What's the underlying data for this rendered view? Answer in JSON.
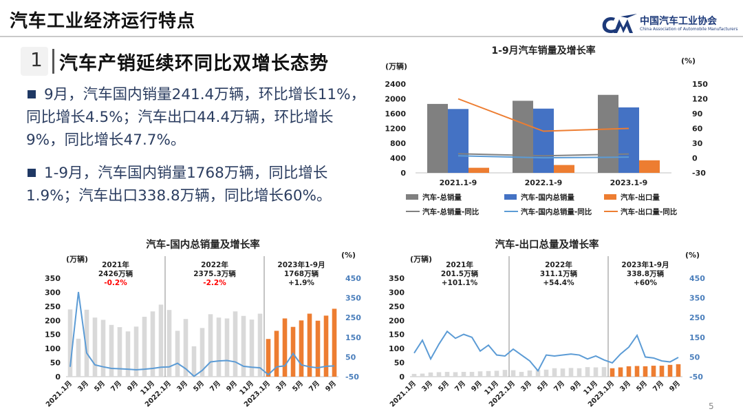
{
  "header": {
    "title": "汽车工业经济运行特点",
    "logo_cn": "中国汽车工业协会",
    "logo_en": "China Association of Automobile Manufacturers"
  },
  "section": {
    "number": "1",
    "title": "汽车产销延续环同比双增长态势"
  },
  "bullets": [
    {
      "line1": "9月，汽车国内销量241.4万辆，环比增长11%，",
      "line2": "同比增长4.5%；汽车出口44.4万辆，环比增长",
      "line3": "9%，同比增长47.7%。"
    },
    {
      "line1": "1-9月，汽车国内销量1768万辆，同比增长",
      "line2": "1.9%；汽车出口338.8万辆，同比增长60%。"
    }
  ],
  "page_number": "5",
  "colors": {
    "gray": "#808080",
    "blue": "#4472c4",
    "orange": "#ed7d31",
    "lightblue": "#5b9bd5",
    "lightgray": "#d9d9d9",
    "red": "#ff0000"
  },
  "chart_data": [
    {
      "type": "bar",
      "title": "1-9月汽车销量及增长率",
      "ylabel": "(万辆)",
      "y2label": "(%)",
      "ylim": [
        0,
        2400
      ],
      "yticks": [
        0,
        400,
        800,
        1200,
        1600,
        2000,
        2400
      ],
      "y2lim": [
        -30,
        150
      ],
      "y2ticks": [
        -30,
        0,
        30,
        60,
        90,
        120,
        150
      ],
      "categories": [
        "2021.1-9",
        "2022.1-9",
        "2023.1-9"
      ],
      "series": [
        {
          "name": "汽车-总销量",
          "kind": "bar",
          "axis": "left",
          "values": [
            1862,
            1947,
            2107
          ]
        },
        {
          "name": "汽车-国内总销量",
          "kind": "bar",
          "axis": "left",
          "values": [
            1725,
            1735,
            1768
          ]
        },
        {
          "name": "汽车-出口量",
          "kind": "bar",
          "axis": "left",
          "values": [
            137,
            212,
            338.8
          ]
        },
        {
          "name": "汽车-总销量-同比",
          "kind": "line",
          "axis": "right",
          "values": [
            8.7,
            4.6,
            8.2
          ]
        },
        {
          "name": "汽车-国内总销量-同比",
          "kind": "line",
          "axis": "right",
          "values": [
            4.5,
            0.6,
            1.9
          ]
        },
        {
          "name": "汽车-出口量-同比",
          "kind": "line",
          "axis": "right",
          "values": [
            120,
            54.4,
            60
          ]
        }
      ],
      "legend": [
        "汽车-总销量",
        "汽车-国内总销量",
        "汽车-出口量",
        "汽车-总销量-同比",
        "汽车-国内总销量-同比",
        "汽车-出口量-同比"
      ]
    },
    {
      "type": "bar",
      "title": "汽车-国内总销量及增长率",
      "ylabel": "(万辆)",
      "y2label": "(%)",
      "ylim": [
        0,
        350
      ],
      "yticks": [
        0,
        50,
        100,
        150,
        200,
        250,
        300,
        350
      ],
      "y2lim": [
        -50,
        450
      ],
      "y2ticks": [
        -50,
        50,
        150,
        250,
        350,
        450
      ],
      "xticks": [
        "2021.1月",
        "3月",
        "5月",
        "7月",
        "9月",
        "11月",
        "2022.1月",
        "3月",
        "5月",
        "7月",
        "9月",
        "11月",
        "2023.1月",
        "3月",
        "5月",
        "7月",
        "9月"
      ],
      "annotations": [
        {
          "year": "2021年",
          "total": "2426万辆",
          "growth": "-0.2%",
          "negative": true
        },
        {
          "year": "2022年",
          "total": "2375.3万辆",
          "growth": "-2.2%",
          "negative": true
        },
        {
          "year": "2023年1-9月",
          "total": "1768万辆",
          "growth": "+1.9%",
          "negative": false
        }
      ],
      "bars": [
        239,
        135,
        238,
        210,
        202,
        184,
        176,
        161,
        178,
        213,
        232,
        256,
        237,
        163,
        205,
        108,
        173,
        222,
        210,
        207,
        232,
        216,
        203,
        224,
        134,
        163,
        207,
        177,
        200,
        224,
        199,
        217,
        241.4
      ],
      "growth": [
        0,
        380,
        70,
        10,
        0,
        -8,
        -10,
        -12,
        -15,
        -12,
        -8,
        -2,
        0,
        18,
        -10,
        -48,
        -18,
        25,
        30,
        32,
        25,
        3,
        -2,
        -5,
        -40,
        0,
        5,
        68,
        10,
        0,
        -5,
        3,
        4.5
      ]
    },
    {
      "type": "bar",
      "title": "汽车-出口总量及增长率",
      "ylabel": "(万辆)",
      "y2label": "(%)",
      "ylim": [
        0,
        350
      ],
      "yticks": [
        0,
        50,
        100,
        150,
        200,
        250,
        300,
        350
      ],
      "y2lim": [
        -50,
        450
      ],
      "y2ticks": [
        -50,
        50,
        150,
        250,
        350,
        450
      ],
      "xticks": [
        "2021.1月",
        "3月",
        "5月",
        "7月",
        "9月",
        "11月",
        "2022.1月",
        "3月",
        "5月",
        "7月",
        "9月",
        "11月",
        "2023.1月",
        "3月",
        "5月",
        "7月",
        "9月"
      ],
      "annotations": [
        {
          "year": "2021年",
          "total": "201.5万辆",
          "growth": "+101.1%",
          "negative": false
        },
        {
          "year": "2022年",
          "total": "311.1万辆",
          "growth": "+54.4%",
          "negative": false
        },
        {
          "year": "2023年1-9月",
          "total": "338.8万辆",
          "growth": "+60%",
          "negative": false
        }
      ],
      "bars": [
        10,
        11,
        15,
        16,
        17,
        16,
        17,
        17,
        19,
        20,
        21,
        24,
        23,
        17,
        22,
        24,
        25,
        30,
        29,
        31,
        30,
        34,
        33,
        34,
        30,
        33,
        37,
        38,
        37,
        39,
        39,
        42,
        44.4
      ],
      "growth": [
        70,
        135,
        40,
        115,
        180,
        145,
        165,
        150,
        80,
        110,
        60,
        55,
        90,
        60,
        30,
        -20,
        60,
        55,
        60,
        65,
        60,
        40,
        55,
        35,
        20,
        65,
        100,
        160,
        50,
        45,
        30,
        25,
        47.7
      ]
    }
  ]
}
